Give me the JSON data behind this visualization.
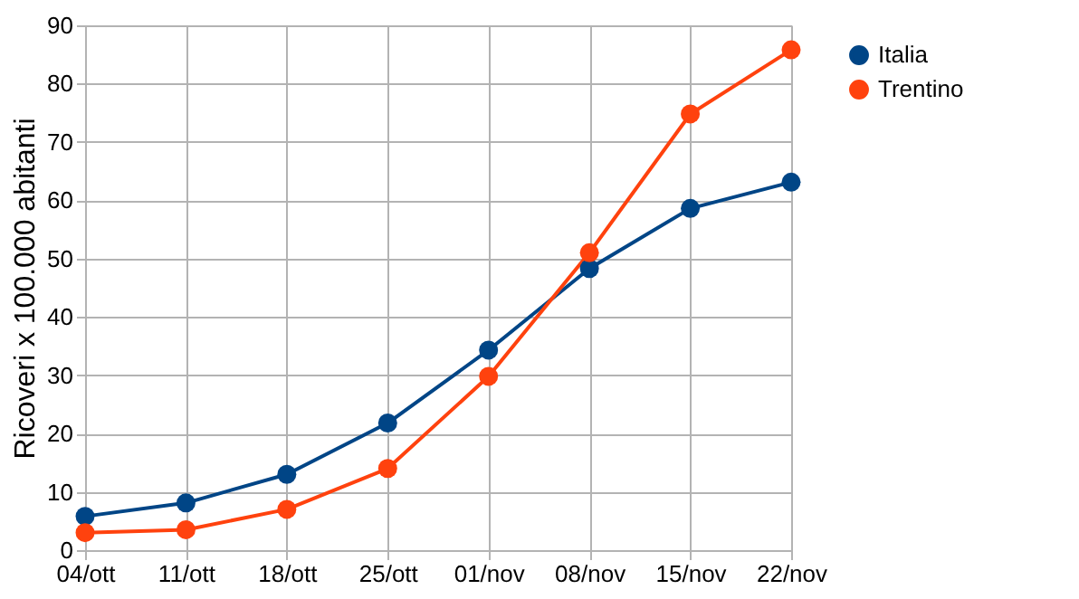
{
  "chart_data": {
    "type": "line",
    "ylabel": "Ricoveri x 100.000 abitanti",
    "categories": [
      "04/ott",
      "11/ott",
      "18/ott",
      "25/ott",
      "01/nov",
      "08/nov",
      "15/nov",
      "22/nov"
    ],
    "series": [
      {
        "name": "Italia",
        "color": "#004586",
        "values": [
          5.8,
          8.1,
          13,
          21.8,
          34.3,
          48.3,
          58.6,
          63.1
        ]
      },
      {
        "name": "Trentino",
        "color": "#ff420e",
        "values": [
          3,
          3.5,
          7,
          14,
          29.8,
          51,
          74.8,
          85.8
        ]
      }
    ],
    "ylim": [
      0,
      90
    ],
    "yticks": [
      0,
      10,
      20,
      30,
      40,
      50,
      60,
      70,
      80,
      90
    ],
    "grid": true,
    "legend": "right",
    "marker": "circle",
    "line_style": "solid"
  }
}
